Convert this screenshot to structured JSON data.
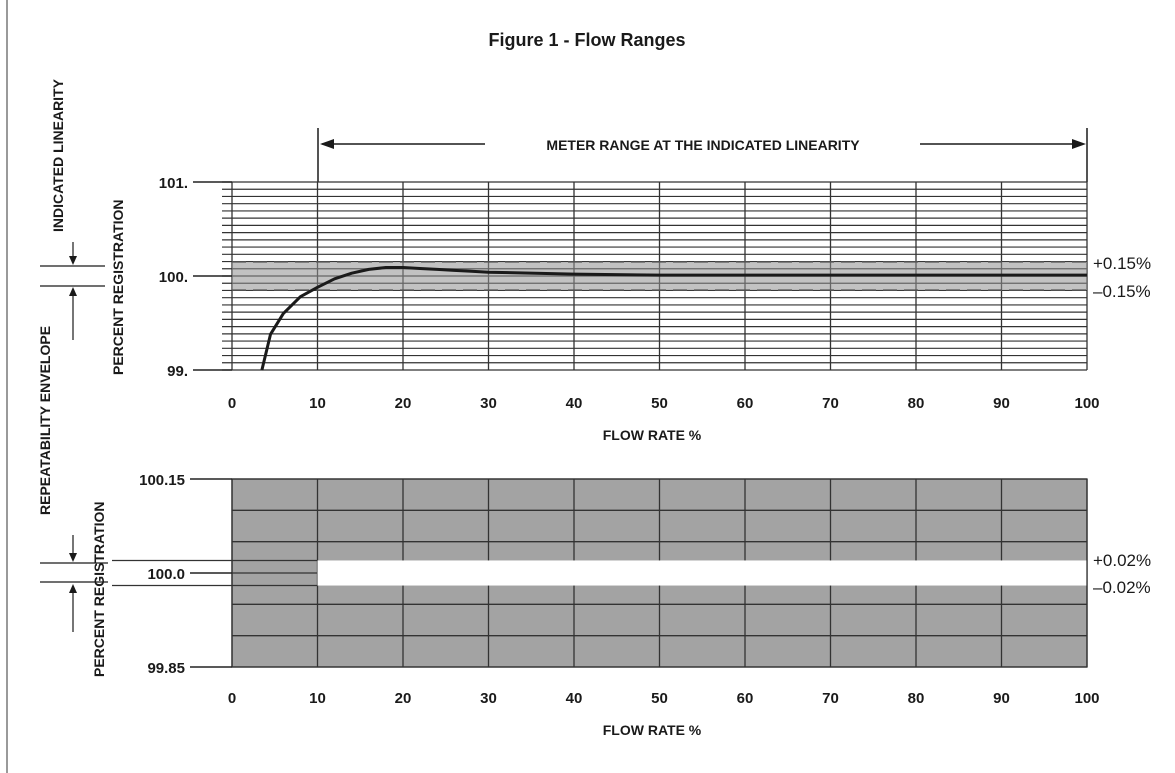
{
  "title": "Figure 1 - Flow Ranges",
  "chart_data": [
    {
      "type": "line",
      "title": "Figure 1 - Flow Ranges",
      "range_annotation": "METER RANGE AT THE INDICATED LINEARITY",
      "range_start": 10,
      "range_end": 100,
      "side_label": "INDICATED LINEARITY",
      "xlabel": "FLOW RATE %",
      "ylabel": "PERCENT REGISTRATION",
      "xlim": [
        0,
        100
      ],
      "ylim": [
        99,
        101
      ],
      "x_ticks": [
        "0",
        "10",
        "20",
        "30",
        "40",
        "50",
        "60",
        "70",
        "80",
        "90",
        "100"
      ],
      "y_ticks": [
        {
          "value": 101,
          "label": "101."
        },
        {
          "value": 100,
          "label": "100."
        },
        {
          "value": 99,
          "label": "99."
        }
      ],
      "band": {
        "upper": 100.15,
        "lower": 99.85,
        "upper_label": "+0.15%",
        "lower_label": "–0.15%"
      },
      "series": [
        {
          "x": [
            3.5,
            4.5,
            6,
            8,
            10,
            12,
            14,
            16,
            18,
            20,
            22,
            24,
            26,
            28,
            30,
            40,
            50,
            60,
            70,
            80,
            90,
            100
          ],
          "y": [
            99.0,
            99.38,
            99.6,
            99.78,
            99.88,
            99.97,
            100.03,
            100.07,
            100.09,
            100.09,
            100.08,
            100.07,
            100.06,
            100.05,
            100.04,
            100.02,
            100.01,
            100.01,
            100.01,
            100.01,
            100.01,
            100.01
          ]
        }
      ],
      "grid": true
    },
    {
      "type": "area",
      "side_label": "REPEATABILITY ENVELOPE",
      "xlabel": "FLOW RATE %",
      "ylabel": "PERCENT REGISTRATION",
      "xlim": [
        0,
        100
      ],
      "ylim": [
        99.85,
        100.15
      ],
      "x_ticks": [
        "0",
        "10",
        "20",
        "30",
        "40",
        "50",
        "60",
        "70",
        "80",
        "90",
        "100"
      ],
      "y_ticks": [
        {
          "value": 100.15,
          "label": "100.15"
        },
        {
          "value": 100.0,
          "label": "100.0"
        },
        {
          "value": 99.85,
          "label": "99.85"
        }
      ],
      "band": {
        "upper": 100.02,
        "lower": 99.98,
        "start": 10,
        "end": 100,
        "upper_label": "+0.02%",
        "lower_label": "–0.02%"
      },
      "grid": true
    }
  ]
}
